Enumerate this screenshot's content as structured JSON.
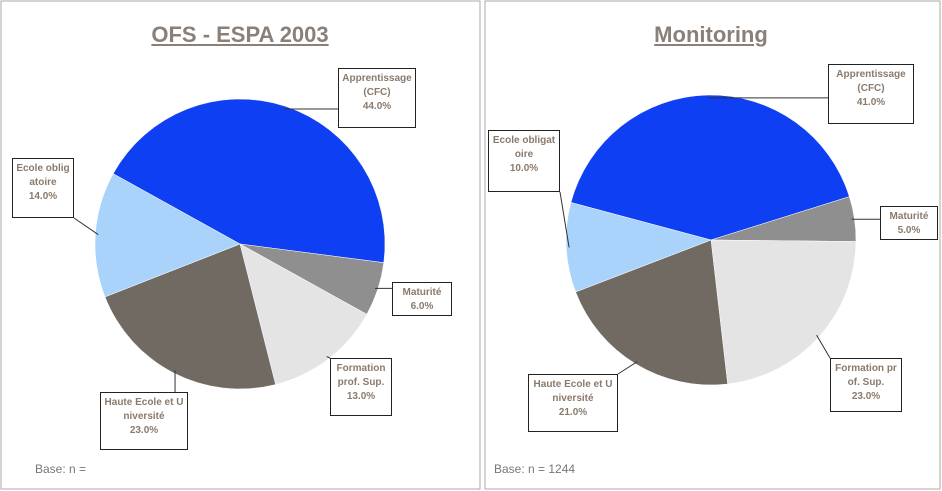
{
  "chart_data": [
    {
      "type": "pie",
      "title": "OFS - ESPA 2003",
      "categories": [
        "Apprentissage (CFC)",
        "Maturité",
        "Formation prof. Sup.",
        "Haute Ecole et Université",
        "Ecole obligatoire"
      ],
      "values": [
        44,
        6,
        13,
        23,
        14
      ],
      "value_labels": [
        "44.0%",
        "6.0%",
        "13.0%",
        "23.0%",
        "14.0%"
      ],
      "colors": [
        "#0f3ff2",
        "#8f8f8f",
        "#e4e4e4",
        "#716a62",
        "#a9d3fb"
      ],
      "note": "Base: n ="
    },
    {
      "type": "pie",
      "title": "Monitoring",
      "categories": [
        "Apprentissage (CFC)",
        "Maturité",
        "Formation prof. Sup.",
        "Haute Ecole et Université",
        "Ecole obligatoire"
      ],
      "values": [
        41,
        5,
        23,
        21,
        10
      ],
      "value_labels": [
        "41.0%",
        "5.0%",
        "23.0%",
        "21.0%",
        "10.0%"
      ],
      "colors": [
        "#0f3ff2",
        "#8f8f8f",
        "#e4e4e4",
        "#716a62",
        "#a9d3fb"
      ],
      "note": "Base: n = 1244"
    }
  ]
}
